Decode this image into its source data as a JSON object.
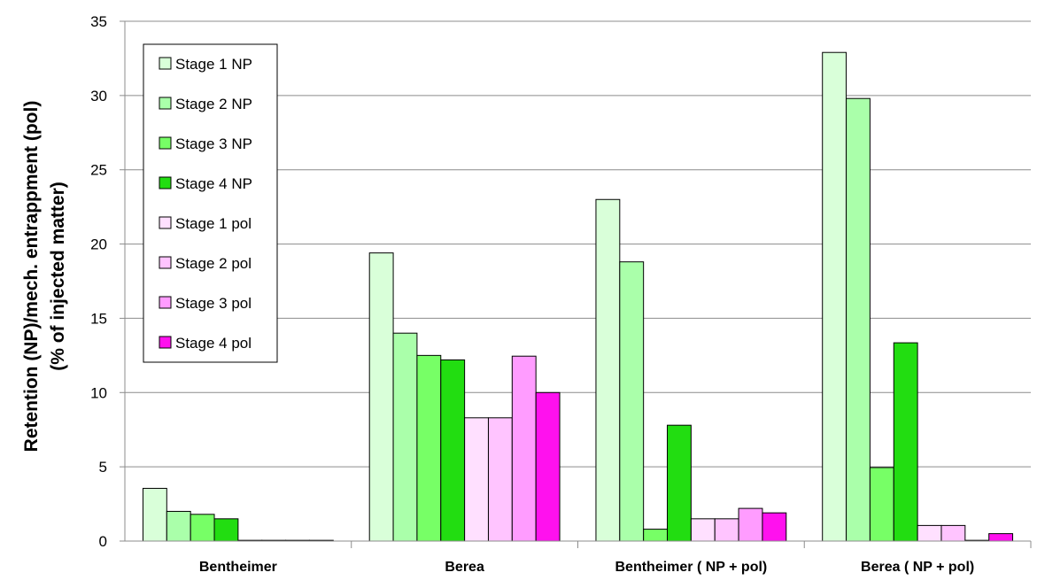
{
  "chart_data": {
    "type": "bar",
    "title": "",
    "ylabel_lines": [
      "Retention (NP)/mech. entrappment (pol)",
      "(% of injected matter)"
    ],
    "xlabel": "",
    "ylim": [
      0,
      35
    ],
    "yticks": [
      0,
      5,
      10,
      15,
      20,
      25,
      30,
      35
    ],
    "grid": true,
    "legend_position": "top-left",
    "categories": [
      "Bentheimer",
      "Berea",
      "Bentheimer ( NP + pol)",
      "Berea ( NP + pol)"
    ],
    "series": [
      {
        "name": "Stage 1 NP",
        "color": "#d9ffd9",
        "values": [
          3.55,
          19.4,
          23.0,
          32.9
        ]
      },
      {
        "name": "Stage 2 NP",
        "color": "#aaffaa",
        "values": [
          2.0,
          14.0,
          18.8,
          29.8
        ]
      },
      {
        "name": "Stage 3 NP",
        "color": "#77ff66",
        "values": [
          1.8,
          12.5,
          0.8,
          4.95
        ]
      },
      {
        "name": "Stage 4 NP",
        "color": "#22dd11",
        "values": [
          1.5,
          12.2,
          7.8,
          13.35
        ]
      },
      {
        "name": "Stage 1 pol",
        "color": "#ffe0ff",
        "values": [
          0.05,
          8.3,
          1.5,
          1.05
        ]
      },
      {
        "name": "Stage 2 pol",
        "color": "#ffc4ff",
        "values": [
          0.05,
          8.3,
          1.5,
          1.05
        ]
      },
      {
        "name": "Stage 3 pol",
        "color": "#ff9cff",
        "values": [
          0.05,
          12.45,
          2.2,
          0.05
        ]
      },
      {
        "name": "Stage 4 pol",
        "color": "#ff11ee",
        "values": [
          0.05,
          10.0,
          1.9,
          0.5
        ]
      }
    ]
  }
}
